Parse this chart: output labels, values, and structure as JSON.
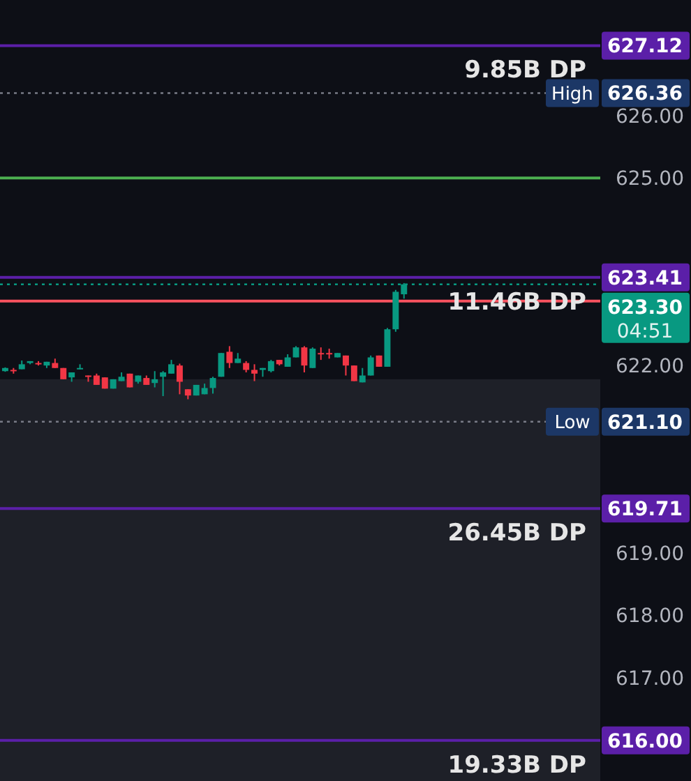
{
  "chart_data": {
    "type": "candlestick",
    "categories": [
      null,
      null,
      null,
      null,
      null,
      null,
      null,
      null,
      null,
      null,
      null,
      null,
      null,
      null,
      null,
      null,
      null,
      null,
      null,
      null,
      null,
      null,
      null,
      null,
      null,
      null,
      null,
      null,
      null,
      null,
      null,
      null,
      null,
      null,
      null,
      null,
      null,
      null,
      null,
      null,
      null,
      null,
      null,
      null,
      null,
      null,
      null,
      null,
      null,
      null,
      null,
      null,
      null,
      null,
      null,
      null,
      null,
      null,
      null,
      null,
      null,
      null,
      null,
      null,
      null,
      null,
      null,
      null,
      null,
      null,
      null,
      null
    ],
    "ohlc": [
      [
        621.91,
        621.97,
        621.9,
        621.96
      ],
      [
        621.93,
        621.96,
        621.87,
        621.91
      ],
      [
        621.94,
        622.08,
        621.94,
        622.02
      ],
      [
        622.04,
        622.07,
        622.02,
        622.07
      ],
      [
        622.04,
        622.07,
        622.0,
        622.03
      ],
      [
        622.0,
        622.06,
        621.96,
        622.06
      ],
      [
        622.04,
        622.11,
        621.96,
        621.96
      ],
      [
        621.96,
        621.96,
        621.78,
        621.78
      ],
      [
        621.81,
        621.89,
        621.74,
        621.89
      ],
      [
        621.94,
        622.02,
        621.94,
        621.96
      ],
      [
        621.84,
        621.84,
        621.74,
        621.83
      ],
      [
        621.84,
        621.87,
        621.69,
        621.69
      ],
      [
        621.81,
        621.81,
        621.63,
        621.63
      ],
      [
        621.63,
        621.78,
        621.63,
        621.78
      ],
      [
        621.75,
        621.89,
        621.75,
        621.82
      ],
      [
        621.87,
        621.87,
        621.65,
        621.65
      ],
      [
        621.74,
        621.84,
        621.71,
        621.84
      ],
      [
        621.8,
        621.84,
        621.69,
        621.69
      ],
      [
        621.72,
        621.91,
        621.65,
        621.78
      ],
      [
        621.82,
        621.91,
        621.51,
        621.89
      ],
      [
        621.87,
        622.09,
        621.87,
        622.02
      ],
      [
        622.0,
        622.03,
        621.54,
        621.74
      ],
      [
        621.62,
        621.62,
        621.46,
        621.52
      ],
      [
        621.52,
        621.69,
        621.52,
        621.69
      ],
      [
        621.54,
        621.71,
        621.54,
        621.64
      ],
      [
        621.64,
        621.82,
        621.55,
        621.8
      ],
      [
        621.82,
        622.2,
        621.82,
        622.2
      ],
      [
        622.22,
        622.31,
        621.96,
        622.04
      ],
      [
        622.04,
        622.2,
        622.04,
        622.11
      ],
      [
        622.04,
        622.07,
        621.89,
        621.93
      ],
      [
        621.93,
        622.02,
        621.75,
        621.87
      ],
      [
        621.93,
        621.96,
        621.82,
        621.96
      ],
      [
        621.91,
        622.09,
        621.89,
        622.07
      ],
      [
        622.09,
        622.09,
        622.0,
        622.02
      ],
      [
        621.98,
        622.18,
        621.98,
        622.13
      ],
      [
        622.13,
        622.31,
        622.13,
        622.29
      ],
      [
        622.29,
        622.31,
        621.89,
        622.0
      ],
      [
        621.96,
        622.29,
        621.96,
        622.27
      ],
      [
        622.2,
        622.29,
        622.09,
        622.19
      ],
      [
        622.2,
        622.27,
        622.11,
        622.19
      ],
      [
        622.13,
        622.2,
        622.13,
        622.2
      ],
      [
        622.16,
        622.16,
        621.84,
        622.0
      ],
      [
        622.0,
        622.0,
        621.75,
        621.75
      ],
      [
        621.73,
        621.96,
        621.73,
        621.84
      ],
      [
        621.84,
        622.16,
        621.84,
        622.13
      ],
      [
        622.16,
        622.16,
        621.98,
        621.98
      ],
      [
        621.98,
        622.6,
        621.98,
        622.58
      ],
      [
        622.58,
        623.21,
        622.54,
        623.18
      ],
      [
        623.14,
        623.32,
        623.07,
        623.3
      ],
      null,
      null,
      null,
      null,
      null,
      null,
      null,
      null,
      null,
      null,
      null,
      null,
      null,
      null,
      null,
      null,
      null,
      null,
      null,
      null,
      null,
      null,
      null
    ],
    "colors": [
      "#089981",
      "#f23645",
      "#089981",
      "#089981",
      "#f23645",
      "#089981",
      "#f23645",
      "#f23645",
      "#089981",
      "#089981",
      "#f23645",
      "#f23645",
      "#f23645",
      "#089981",
      "#089981",
      "#f23645",
      "#089981",
      "#f23645",
      "#089981",
      "#089981",
      "#089981",
      "#f23645",
      "#f23645",
      "#089981",
      "#089981",
      "#089981",
      "#089981",
      "#f23645",
      "#089981",
      "#f23645",
      "#f23645",
      "#089981",
      "#089981",
      "#f23645",
      "#089981",
      "#089981",
      "#f23645",
      "#089981",
      "#f23645",
      "#f23645",
      "#089981",
      "#f23645",
      "#f23645",
      "#089981",
      "#089981",
      "#f23645",
      "#089981",
      "#089981",
      "#089981",
      null,
      null,
      null,
      null,
      null,
      null,
      null,
      null,
      null,
      null,
      null,
      null,
      null,
      null,
      null,
      null,
      null,
      null,
      null,
      null,
      null,
      null,
      null
    ],
    "ylim": [
      615.35,
      627.85
    ],
    "yticks": [
      {
        "value": 617,
        "label": "617.00"
      },
      {
        "value": 618,
        "label": "618.00"
      },
      {
        "value": 619,
        "label": "619.00"
      },
      {
        "value": 622,
        "label": "622.00"
      },
      {
        "value": 625,
        "label": "625.00"
      },
      {
        "value": 626,
        "label": "626.00"
      }
    ],
    "tick_labels": "y",
    "grid": false,
    "bands": [
      {
        "axis": "y",
        "from": 615.35,
        "to": 621.78,
        "color": "#1e2028"
      }
    ],
    "ref_lines": [
      {
        "axis": "y",
        "value": 627.12,
        "label": "9.85B DP",
        "color": "#5b1fa8",
        "line_style": "solid"
      },
      {
        "axis": "y",
        "value": 626.36,
        "label": "High",
        "color": "#787b86",
        "line_style": "dotted"
      },
      {
        "axis": "y",
        "value": 625.0,
        "color": "#4caf50",
        "line_style": "solid"
      },
      {
        "axis": "y",
        "value": 623.41,
        "label": "11.46B DP",
        "color": "#5b1fa8",
        "line_style": "solid"
      },
      {
        "axis": "y",
        "value": 623.3,
        "color": "#089981",
        "line_style": "dotted"
      },
      {
        "axis": "y",
        "value": 623.03,
        "color": "#f7525f",
        "line_style": "solid"
      },
      {
        "axis": "y",
        "value": 621.1,
        "label": "Low",
        "color": "#787b86",
        "line_style": "dotted"
      },
      {
        "axis": "y",
        "value": 619.71,
        "label": "26.45B DP",
        "color": "#5b1fa8",
        "line_style": "solid"
      },
      {
        "axis": "y",
        "value": 616.0,
        "label": "19.33B DP",
        "color": "#5b1fa8",
        "line_style": "solid"
      }
    ],
    "annotations": [
      "623.30",
      "04:51",
      "627.12",
      "626.36",
      "623.41",
      "621.10",
      "619.71",
      "616.00"
    ]
  }
}
